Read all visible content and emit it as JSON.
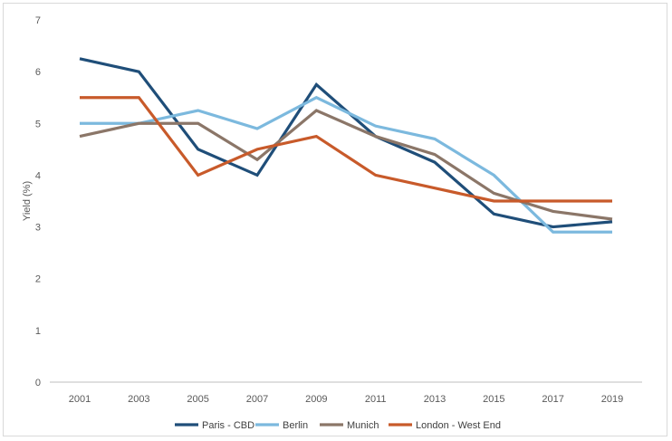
{
  "chart_data": {
    "type": "line",
    "x": [
      "2001",
      "2003",
      "2005",
      "2007",
      "2009",
      "2011",
      "2013",
      "2015",
      "2017",
      "2019"
    ],
    "xlabel": "",
    "ylabel": "Yield (%)",
    "ylim": [
      0,
      7
    ],
    "yticks": [
      "0",
      "1",
      "2",
      "3",
      "4",
      "5",
      "6",
      "7"
    ],
    "grid": false,
    "legend_position": "bottom",
    "series": [
      {
        "name": "Paris - CBD",
        "color": "#1f4e79",
        "values": [
          6.25,
          6.0,
          4.5,
          4.0,
          5.75,
          4.75,
          4.25,
          3.25,
          3.0,
          3.1
        ]
      },
      {
        "name": "Berlin",
        "color": "#7cb9de",
        "values": [
          5.0,
          5.0,
          5.25,
          4.9,
          5.5,
          4.95,
          4.7,
          4.0,
          2.9,
          2.9
        ]
      },
      {
        "name": "Munich",
        "color": "#8b7668",
        "values": [
          4.75,
          5.0,
          5.0,
          4.3,
          5.25,
          4.75,
          4.4,
          3.65,
          3.3,
          3.15
        ]
      },
      {
        "name": "London - West End",
        "color": "#c85a2a",
        "values": [
          5.5,
          5.5,
          4.0,
          4.5,
          4.75,
          4.0,
          3.75,
          3.5,
          3.5,
          3.5
        ]
      }
    ]
  }
}
